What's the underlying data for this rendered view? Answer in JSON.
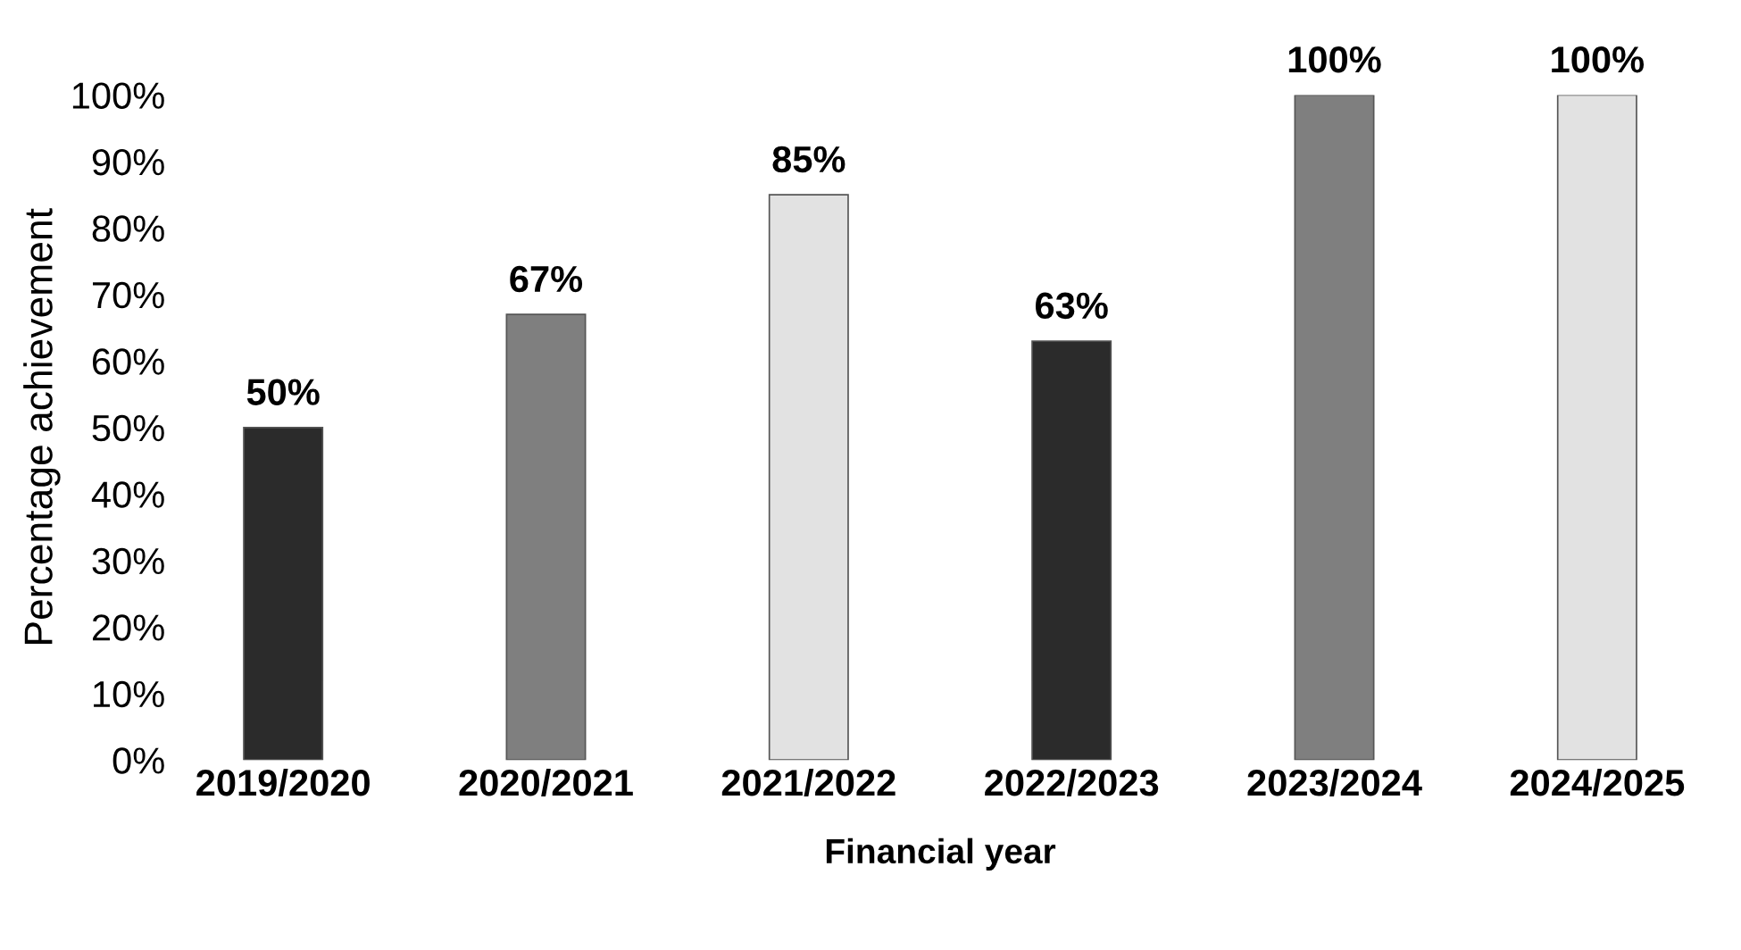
{
  "chart_data": {
    "type": "bar",
    "xlabel": "Financial year",
    "ylabel": "Percentage achievement",
    "categories": [
      "2019/2020",
      "2020/2021",
      "2021/2022",
      "2022/2023",
      "2023/2024",
      "2024/2025"
    ],
    "values": [
      50,
      67,
      85,
      63,
      100,
      100
    ],
    "colors": [
      "#2b2b2b",
      "#7f7f7f",
      "#e2e2e2",
      "#2b2b2b",
      "#7f7f7f",
      "#e2e2e2"
    ],
    "value_labels": [
      "50%",
      "67%",
      "85%",
      "63%",
      "100%",
      "100%"
    ],
    "ylim": [
      0,
      100
    ],
    "yticks": [
      {
        "value": 0,
        "label": "0%"
      },
      {
        "value": 10,
        "label": "10%"
      },
      {
        "value": 20,
        "label": "20%"
      },
      {
        "value": 30,
        "label": "30%"
      },
      {
        "value": 40,
        "label": "40%"
      },
      {
        "value": 50,
        "label": "50%"
      },
      {
        "value": 60,
        "label": "60%"
      },
      {
        "value": 70,
        "label": "70%"
      },
      {
        "value": 80,
        "label": "80%"
      },
      {
        "value": 90,
        "label": "90%"
      },
      {
        "value": 100,
        "label": "100%"
      }
    ],
    "grid": false,
    "legend": false
  }
}
